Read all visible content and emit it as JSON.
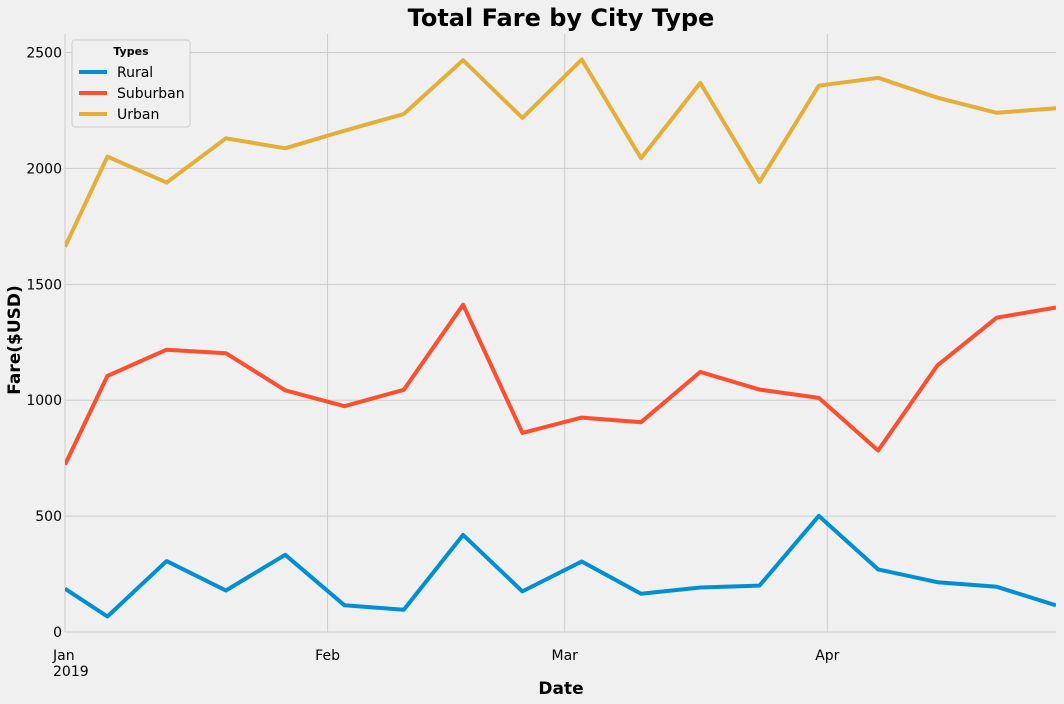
{
  "chart_data": {
    "type": "line",
    "title": "Total Fare by City Type",
    "xlabel": "Date",
    "ylabel": "Fare($USD)",
    "ylim": [
      0,
      2580
    ],
    "xlim": [
      "2019-01-01",
      "2019-04-28"
    ],
    "grid": true,
    "legend": {
      "title": "Types",
      "placement": "top-left"
    },
    "x": [
      "2019-01-01",
      "2019-01-06",
      "2019-01-13",
      "2019-01-20",
      "2019-01-27",
      "2019-02-03",
      "2019-02-10",
      "2019-02-17",
      "2019-02-24",
      "2019-03-03",
      "2019-03-10",
      "2019-03-17",
      "2019-03-24",
      "2019-03-31",
      "2019-04-07",
      "2019-04-14",
      "2019-04-21",
      "2019-04-28"
    ],
    "x_ticks": [
      {
        "date": "2019-01-01",
        "label": "Jan",
        "sublabel": "2019"
      },
      {
        "date": "2019-02-01",
        "label": "Feb"
      },
      {
        "date": "2019-03-01",
        "label": "Mar"
      },
      {
        "date": "2019-04-01",
        "label": "Apr"
      }
    ],
    "y_ticks": [
      0,
      500,
      1000,
      1500,
      2000,
      2500
    ],
    "series": [
      {
        "name": "Rural",
        "color": "#008fd5",
        "values": [
          187,
          67,
          306,
          179,
          333,
          115,
          96,
          419,
          175,
          304,
          165,
          192,
          200,
          501,
          270,
          215,
          195,
          115
        ]
      },
      {
        "name": "Suburban",
        "color": "#fc4f30",
        "values": [
          722,
          1105,
          1218,
          1203,
          1043,
          974,
          1045,
          1412,
          859,
          925,
          905,
          1122,
          1046,
          1010,
          783,
          1150,
          1356,
          1400
        ]
      },
      {
        "name": "Urban",
        "color": "#e5ae38",
        "values": [
          1662,
          2051,
          1939,
          2130,
          2087,
          2163,
          2235,
          2467,
          2218,
          2470,
          2044,
          2369,
          1942,
          2357,
          2391,
          2305,
          2240,
          2260
        ]
      }
    ]
  }
}
